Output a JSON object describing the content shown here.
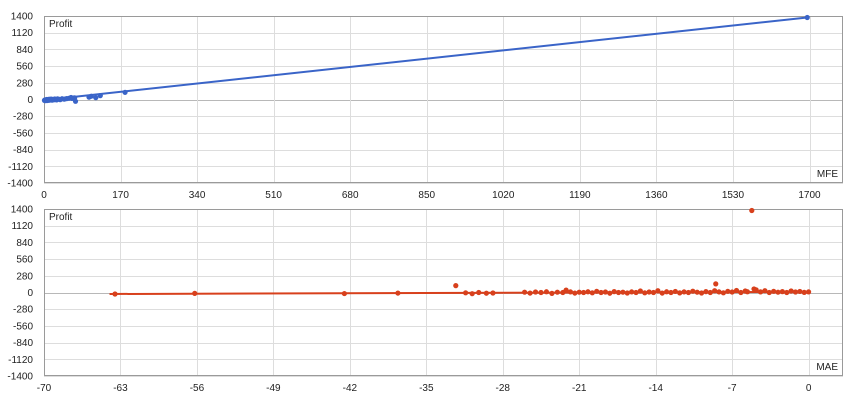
{
  "chart_data": [
    {
      "type": "scatter",
      "ylabel": "Profit",
      "xlabel": "MFE",
      "xlim": [
        0,
        1700
      ],
      "ylim": [
        -1400,
        1400
      ],
      "xticks": [
        "0",
        "170",
        "340",
        "510",
        "680",
        "850",
        "1020",
        "1190",
        "1360",
        "1530",
        "1700"
      ],
      "yticks": [
        "1400",
        "1120",
        "840",
        "560",
        "280",
        "0",
        "-280",
        "-560",
        "-840",
        "-1120",
        "-1400"
      ],
      "color": "#3a64c8",
      "trend": [
        [
          0,
          -10
        ],
        [
          1695,
          1375
        ]
      ],
      "series": [
        {
          "points": [
            [
              1,
              -15
            ],
            [
              2,
              -8
            ],
            [
              3,
              -20
            ],
            [
              4,
              -5
            ],
            [
              5,
              -12
            ],
            [
              6,
              0
            ],
            [
              7,
              -18
            ],
            [
              8,
              -3
            ],
            [
              9,
              -10
            ],
            [
              10,
              2
            ],
            [
              11,
              -14
            ],
            [
              12,
              -6
            ],
            [
              13,
              4
            ],
            [
              14,
              -9
            ],
            [
              15,
              -2
            ],
            [
              16,
              6
            ],
            [
              18,
              -11
            ],
            [
              20,
              3
            ],
            [
              22,
              -4
            ],
            [
              24,
              8
            ],
            [
              26,
              0
            ],
            [
              28,
              -7
            ],
            [
              30,
              10
            ],
            [
              33,
              5
            ],
            [
              36,
              -2
            ],
            [
              40,
              12
            ],
            [
              45,
              6
            ],
            [
              50,
              15
            ],
            [
              55,
              20
            ],
            [
              60,
              35
            ],
            [
              62,
              18
            ],
            [
              65,
              25
            ],
            [
              68,
              28
            ],
            [
              70,
              -30
            ],
            [
              100,
              40
            ],
            [
              105,
              55
            ],
            [
              115,
              30
            ],
            [
              125,
              65
            ],
            [
              180,
              120
            ],
            [
              1695,
              1375
            ]
          ]
        }
      ]
    },
    {
      "type": "scatter",
      "ylabel": "Profit",
      "xlabel": "MAE",
      "xlim": [
        -70,
        2
      ],
      "ylim": [
        -1400,
        1400
      ],
      "xticks": [
        "-70",
        "-63",
        "-56",
        "-49",
        "-42",
        "-35",
        "-28",
        "-21",
        "-14",
        "-7",
        "0"
      ],
      "yticks": [
        "1400",
        "1120",
        "840",
        "560",
        "280",
        "0",
        "-280",
        "-560",
        "-840",
        "-1120",
        "-1400"
      ],
      "color": "#d8401c",
      "trend": [
        [
          -64,
          -25
        ],
        [
          0,
          10
        ]
      ],
      "series": [
        {
          "points": [
            [
              -63.5,
              -25
            ],
            [
              -56.2,
              -15
            ],
            [
              -42.5,
              -18
            ],
            [
              -37.6,
              -10
            ],
            [
              -32.3,
              115
            ],
            [
              -31.4,
              -5
            ],
            [
              -30.8,
              -20
            ],
            [
              -30.2,
              0
            ],
            [
              -29.5,
              -12
            ],
            [
              -28.9,
              -8
            ],
            [
              -26,
              5
            ],
            [
              -25.5,
              -10
            ],
            [
              -25,
              8
            ],
            [
              -24.5,
              0
            ],
            [
              -24,
              12
            ],
            [
              -23.5,
              -15
            ],
            [
              -23,
              5
            ],
            [
              -22.5,
              0
            ],
            [
              -22.2,
              40
            ],
            [
              -21.8,
              10
            ],
            [
              -21.4,
              -10
            ],
            [
              -21,
              5
            ],
            [
              -20.6,
              0
            ],
            [
              -20.2,
              12
            ],
            [
              -19.8,
              -5
            ],
            [
              -19.4,
              20
            ],
            [
              -19,
              0
            ],
            [
              -18.6,
              8
            ],
            [
              -18.2,
              -12
            ],
            [
              -17.8,
              15
            ],
            [
              -17.4,
              0
            ],
            [
              -17,
              5
            ],
            [
              -16.6,
              -8
            ],
            [
              -16.2,
              10
            ],
            [
              -15.8,
              0
            ],
            [
              -15.4,
              25
            ],
            [
              -15,
              -5
            ],
            [
              -14.6,
              8
            ],
            [
              -14.2,
              0
            ],
            [
              -13.8,
              30
            ],
            [
              -13.4,
              -10
            ],
            [
              -13,
              12
            ],
            [
              -12.6,
              0
            ],
            [
              -12.2,
              18
            ],
            [
              -11.8,
              -6
            ],
            [
              -11.4,
              10
            ],
            [
              -11,
              0
            ],
            [
              -10.6,
              22
            ],
            [
              -10.2,
              5
            ],
            [
              -9.8,
              -8
            ],
            [
              -9.4,
              15
            ],
            [
              -9,
              0
            ],
            [
              -8.6,
              30
            ],
            [
              -8.5,
              145
            ],
            [
              -8.2,
              10
            ],
            [
              -7.8,
              -5
            ],
            [
              -7.4,
              20
            ],
            [
              -7,
              8
            ],
            [
              -6.6,
              35
            ],
            [
              -6.2,
              0
            ],
            [
              -5.8,
              25
            ],
            [
              -5.6,
              12
            ],
            [
              -5.2,
              1375
            ],
            [
              -5,
              60
            ],
            [
              -4.8,
              45
            ],
            [
              -4.4,
              10
            ],
            [
              -4,
              30
            ],
            [
              -3.6,
              0
            ],
            [
              -3.2,
              20
            ],
            [
              -2.8,
              5
            ],
            [
              -2.4,
              15
            ],
            [
              -2,
              0
            ],
            [
              -1.6,
              25
            ],
            [
              -1.2,
              8
            ],
            [
              -0.8,
              18
            ],
            [
              -0.4,
              2
            ],
            [
              0,
              10
            ]
          ]
        }
      ]
    }
  ]
}
